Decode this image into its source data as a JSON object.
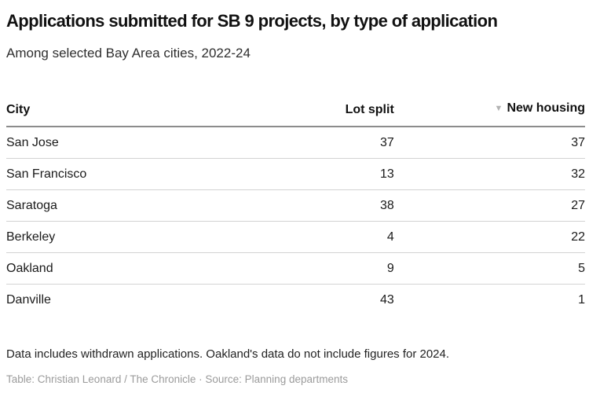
{
  "header": {
    "title": "Applications submitted for SB 9 projects, by type of application",
    "subtitle": "Among selected Bay Area cities, 2022-24"
  },
  "chart_data": {
    "type": "table",
    "title": "Applications submitted for SB 9 projects, by type of application",
    "subtitle": "Among selected Bay Area cities, 2022-24",
    "columns": [
      "City",
      "Lot split",
      "New housing"
    ],
    "rows": [
      {
        "city": "San Jose",
        "lot_split": "37",
        "new_housing": "37"
      },
      {
        "city": "San Francisco",
        "lot_split": "13",
        "new_housing": "32"
      },
      {
        "city": "Saratoga",
        "lot_split": "38",
        "new_housing": "27"
      },
      {
        "city": "Berkeley",
        "lot_split": "4",
        "new_housing": "22"
      },
      {
        "city": "Oakland",
        "lot_split": "9",
        "new_housing": "5"
      },
      {
        "city": "Danville",
        "lot_split": "43",
        "new_housing": "1"
      }
    ],
    "sort": {
      "column": "New housing",
      "direction": "desc",
      "icon": "▼"
    }
  },
  "footer": {
    "note": "Data includes withdrawn applications. Oakland's data do not include figures for 2024.",
    "credit": "Table: Christian Leonard / The Chronicle · Source: Planning departments"
  },
  "colors": {
    "title_text": "#111111",
    "body_text": "#1a1a1a",
    "header_rule": "#8c8c8c",
    "row_rule": "#d3d3d3",
    "sort_arrow": "#b3b3b3",
    "credit_text": "#9b9b9b",
    "background": "#ffffff"
  }
}
